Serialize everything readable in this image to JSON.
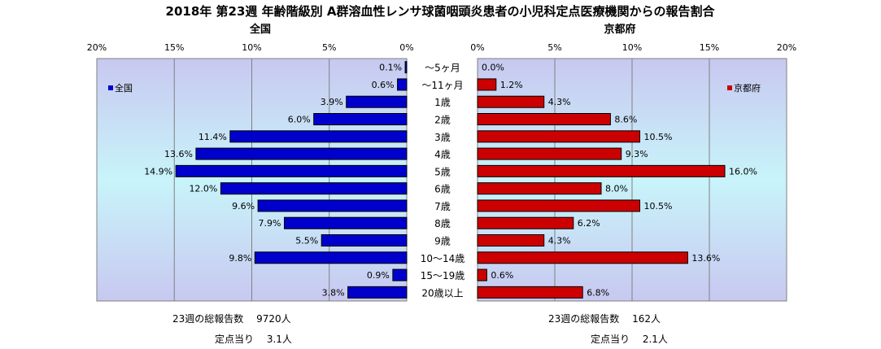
{
  "chart_data": {
    "type": "bar",
    "title": "2018年 第23週 年齢階級別 A群溶血性レンサ球菌咽頭炎患者の小児科定点医療機関からの報告割合",
    "categories": [
      "～5ヶ月",
      "～11ヶ月",
      "1歳",
      "2歳",
      "3歳",
      "4歳",
      "5歳",
      "6歳",
      "7歳",
      "8歳",
      "9歳",
      "10～14歳",
      "15～19歳",
      "20歳以上"
    ],
    "xlim": [
      0,
      20
    ],
    "ticks": [
      "0%",
      "5%",
      "10%",
      "15%",
      "20%"
    ],
    "series": [
      {
        "name": "全国",
        "panel_title": "全国",
        "legend": "全国",
        "color": "#0000cc",
        "values": [
          0.1,
          0.6,
          3.9,
          6.0,
          11.4,
          13.6,
          14.9,
          12.0,
          9.6,
          7.9,
          5.5,
          9.8,
          0.9,
          3.8
        ],
        "labels": [
          "0.1%",
          "0.6%",
          "3.9%",
          "6.0%",
          "11.4%",
          "13.6%",
          "14.9%",
          "12.0%",
          "9.6%",
          "7.9%",
          "5.5%",
          "9.8%",
          "0.9%",
          "3.8%"
        ]
      },
      {
        "name": "京都府",
        "panel_title": "京都府",
        "legend": "京都府",
        "color": "#cc0000",
        "values": [
          0.0,
          1.2,
          4.3,
          8.6,
          10.5,
          9.3,
          16.0,
          8.0,
          10.5,
          6.2,
          4.3,
          13.6,
          0.6,
          6.8
        ],
        "labels": [
          "0.0%",
          "1.2%",
          "4.3%",
          "8.6%",
          "10.5%",
          "9.3%",
          "16.0%",
          "8.0%",
          "10.5%",
          "6.2%",
          "4.3%",
          "13.6%",
          "0.6%",
          "6.8%"
        ]
      }
    ]
  },
  "footer": {
    "left_total": "23週の総報告数　 9720人",
    "left_per": "定点当り　 3.1人",
    "right_total": "23週の総報告数　 162人",
    "right_per": "定点当り　 2.1人"
  },
  "colors": {
    "plot_top": "#c8c8f0",
    "plot_mid": "#c8f4fa",
    "plot_bottom": "#c8c8f0"
  }
}
